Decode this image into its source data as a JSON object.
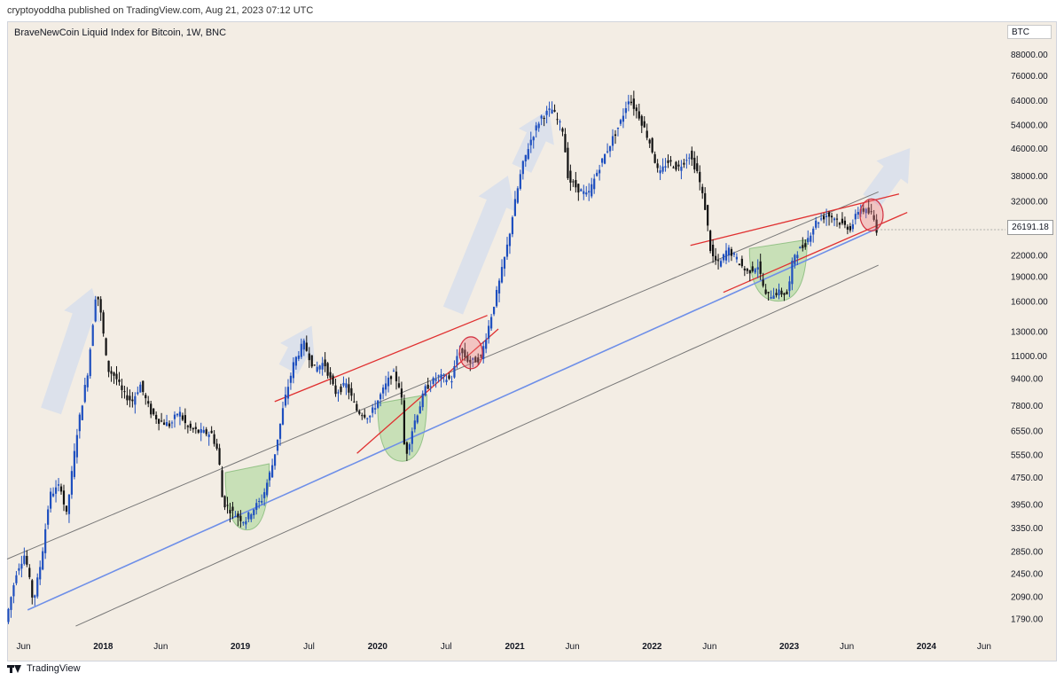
{
  "publisher_line": "cryptoyoddha published on TradingView.com, Aug 21, 2023 07:12 UTC",
  "footer_brand": "TradingView",
  "chart_data": {
    "type": "candlestick",
    "title": "BraveNewCoin Liquid Index for Bitcoin, 1W, BNC",
    "currency": "BTC",
    "last_price": "26191.18",
    "y_scale": "log",
    "ylim": [
      1600,
      100000
    ],
    "xlim": [
      2017.3,
      2024.55
    ],
    "y_ticks": [
      "88000.00",
      "76000.00",
      "64000.00",
      "54000.00",
      "46000.00",
      "38000.00",
      "32000.00",
      "22000.00",
      "19000.00",
      "16000.00",
      "13000.00",
      "11000.00",
      "9400.00",
      "7800.00",
      "6550.00",
      "5550.00",
      "4750.00",
      "3950.00",
      "3350.00",
      "2850.00",
      "2450.00",
      "2090.00",
      "1790.00"
    ],
    "y_tick_values": [
      88000,
      76000,
      64000,
      54000,
      46000,
      38000,
      32000,
      22000,
      19000,
      16000,
      13000,
      11000,
      9400,
      7800,
      6550,
      5550,
      4750,
      3950,
      3350,
      2850,
      2450,
      2090,
      1790
    ],
    "x_ticks": [
      {
        "label": "Jun",
        "t": 2017.42
      },
      {
        "label": "2018",
        "t": 2018.0
      },
      {
        "label": "Jun",
        "t": 2018.42
      },
      {
        "label": "2019",
        "t": 2019.0
      },
      {
        "label": "Jul",
        "t": 2019.5
      },
      {
        "label": "2020",
        "t": 2020.0
      },
      {
        "label": "Jul",
        "t": 2020.5
      },
      {
        "label": "2021",
        "t": 2021.0
      },
      {
        "label": "Jun",
        "t": 2021.42
      },
      {
        "label": "2022",
        "t": 2022.0
      },
      {
        "label": "Jun",
        "t": 2022.42
      },
      {
        "label": "2023",
        "t": 2023.0
      },
      {
        "label": "Jun",
        "t": 2023.42
      },
      {
        "label": "2024",
        "t": 2024.0
      },
      {
        "label": "Jun",
        "t": 2024.42
      }
    ],
    "price_path": [
      [
        2017.3,
        1750
      ],
      [
        2017.38,
        2500
      ],
      [
        2017.44,
        2800
      ],
      [
        2017.5,
        2000
      ],
      [
        2017.56,
        2700
      ],
      [
        2017.62,
        4200
      ],
      [
        2017.7,
        4500
      ],
      [
        2017.74,
        3600
      ],
      [
        2017.82,
        6500
      ],
      [
        2017.9,
        10000
      ],
      [
        2017.96,
        17500
      ],
      [
        2018.0,
        14000
      ],
      [
        2018.04,
        10000
      ],
      [
        2018.1,
        9500
      ],
      [
        2018.15,
        8500
      ],
      [
        2018.22,
        8000
      ],
      [
        2018.28,
        9000
      ],
      [
        2018.35,
        7500
      ],
      [
        2018.42,
        7000
      ],
      [
        2018.5,
        6800
      ],
      [
        2018.56,
        7500
      ],
      [
        2018.62,
        6700
      ],
      [
        2018.7,
        6500
      ],
      [
        2018.8,
        6400
      ],
      [
        2018.85,
        5600
      ],
      [
        2018.88,
        4000
      ],
      [
        2018.96,
        3700
      ],
      [
        2019.04,
        3500
      ],
      [
        2019.1,
        3800
      ],
      [
        2019.17,
        4100
      ],
      [
        2019.25,
        5300
      ],
      [
        2019.33,
        8000
      ],
      [
        2019.4,
        10500
      ],
      [
        2019.47,
        12000
      ],
      [
        2019.55,
        10000
      ],
      [
        2019.62,
        10500
      ],
      [
        2019.7,
        8500
      ],
      [
        2019.78,
        9000
      ],
      [
        2019.86,
        7500
      ],
      [
        2019.95,
        7200
      ],
      [
        2020.04,
        8500
      ],
      [
        2020.12,
        9800
      ],
      [
        2020.18,
        8700
      ],
      [
        2020.21,
        5400
      ],
      [
        2020.27,
        6800
      ],
      [
        2020.36,
        8800
      ],
      [
        2020.45,
        9500
      ],
      [
        2020.55,
        9300
      ],
      [
        2020.6,
        11500
      ],
      [
        2020.68,
        10500
      ],
      [
        2020.76,
        10800
      ],
      [
        2020.82,
        13500
      ],
      [
        2020.9,
        18500
      ],
      [
        2020.96,
        24000
      ],
      [
        2021.0,
        30000
      ],
      [
        2021.06,
        40000
      ],
      [
        2021.12,
        48000
      ],
      [
        2021.2,
        57000
      ],
      [
        2021.28,
        60000
      ],
      [
        2021.36,
        52000
      ],
      [
        2021.4,
        37000
      ],
      [
        2021.46,
        35000
      ],
      [
        2021.54,
        33000
      ],
      [
        2021.62,
        40000
      ],
      [
        2021.7,
        47000
      ],
      [
        2021.78,
        55000
      ],
      [
        2021.84,
        65000
      ],
      [
        2021.92,
        57000
      ],
      [
        2022.0,
        47000
      ],
      [
        2022.06,
        38000
      ],
      [
        2022.12,
        42000
      ],
      [
        2022.2,
        40000
      ],
      [
        2022.28,
        44000
      ],
      [
        2022.34,
        39000
      ],
      [
        2022.4,
        30000
      ],
      [
        2022.44,
        22000
      ],
      [
        2022.5,
        20500
      ],
      [
        2022.56,
        23000
      ],
      [
        2022.62,
        21500
      ],
      [
        2022.7,
        19500
      ],
      [
        2022.78,
        20500
      ],
      [
        2022.84,
        16500
      ],
      [
        2022.92,
        17000
      ],
      [
        2023.0,
        16800
      ],
      [
        2023.04,
        22000
      ],
      [
        2023.12,
        23500
      ],
      [
        2023.2,
        27500
      ],
      [
        2023.28,
        29000
      ],
      [
        2023.34,
        28500
      ],
      [
        2023.4,
        27000
      ],
      [
        2023.46,
        26500
      ],
      [
        2023.52,
        30500
      ],
      [
        2023.58,
        29500
      ],
      [
        2023.62,
        29000
      ],
      [
        2023.64,
        26191
      ]
    ],
    "overlays": {
      "regression_mid": {
        "color": "#6e8fe8",
        "t": [
          2017.45,
          2023.65
        ],
        "p": [
          1900,
          26500
        ]
      },
      "regression_upper": {
        "color": "#777777",
        "t": [
          2017.3,
          2023.65
        ],
        "p": [
          2700,
          34000
        ]
      },
      "regression_lower": {
        "color": "#777777",
        "t": [
          2017.8,
          2023.65
        ],
        "p": [
          1700,
          20500
        ]
      },
      "trendlines": [
        {
          "color": "#e03030",
          "t": [
            2019.25,
            2020.8
          ],
          "p": [
            8000,
            14500
          ]
        },
        {
          "color": "#e03030",
          "t": [
            2019.85,
            2020.88
          ],
          "p": [
            5600,
            13200
          ]
        },
        {
          "color": "#e03030",
          "t": [
            2022.28,
            2023.8
          ],
          "p": [
            23500,
            33500
          ]
        },
        {
          "color": "#e03030",
          "t": [
            2022.52,
            2023.86
          ],
          "p": [
            17000,
            29500
          ]
        }
      ],
      "green_zones": [
        {
          "t": 2019.05,
          "p_top": 4900,
          "p_bottom": 3300,
          "w": 0.32
        },
        {
          "t": 2020.18,
          "p_top": 7900,
          "p_bottom": 5300,
          "w": 0.36
        },
        {
          "t": 2022.92,
          "p_top": 23000,
          "p_bottom": 16000,
          "w": 0.42
        }
      ],
      "red_circles": [
        {
          "t": 2020.68,
          "p": 11200
        },
        {
          "t": 2023.6,
          "p": 29000
        }
      ],
      "arrows": [
        {
          "t1": 2017.62,
          "p1": 7500,
          "t2": 2017.92,
          "p2": 17500
        },
        {
          "t1": 2019.35,
          "p1": 10000,
          "t2": 2019.52,
          "p2": 13500
        },
        {
          "t1": 2020.55,
          "p1": 15000,
          "t2": 2020.95,
          "p2": 38000
        },
        {
          "t1": 2021.05,
          "p1": 40000,
          "t2": 2021.25,
          "p2": 60000
        },
        {
          "t1": 2023.6,
          "p1": 32000,
          "t2": 2023.88,
          "p2": 46000
        }
      ]
    }
  }
}
